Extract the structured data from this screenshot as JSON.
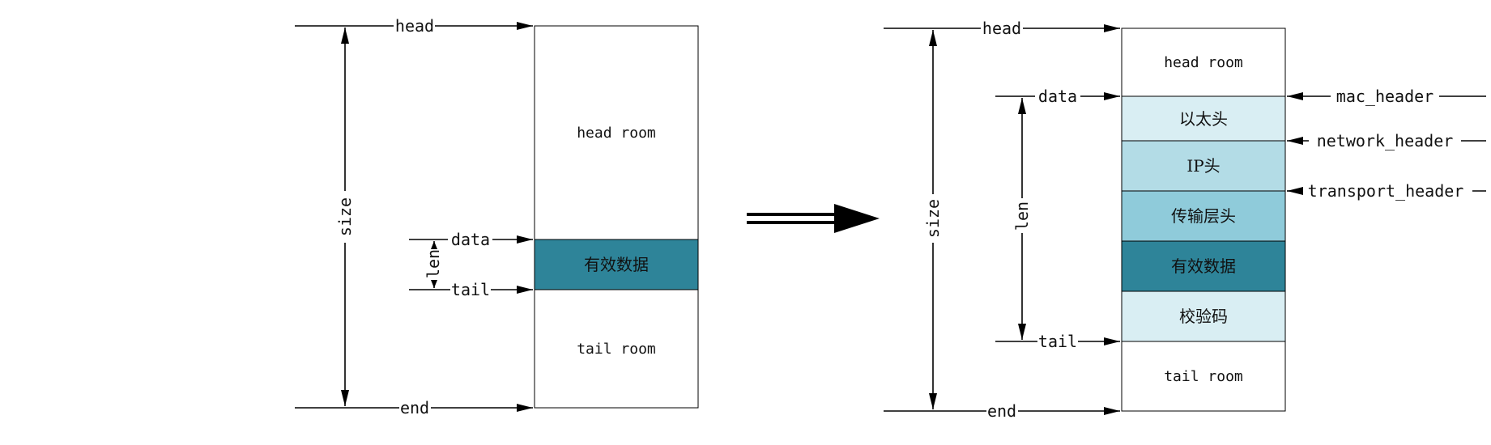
{
  "colors": {
    "white": "#ffffff",
    "light": "#d9eef3",
    "mid": "#b3dce6",
    "mid2": "#8fcbda",
    "dark": "#2e8499"
  },
  "left": {
    "head": "head",
    "data": "data",
    "len": "len",
    "tail": "tail",
    "end": "end",
    "size": "size",
    "head_room": "head room",
    "payload": "有效数据",
    "tail_room": "tail room"
  },
  "right": {
    "head": "head",
    "data": "data",
    "len": "len",
    "tail": "tail",
    "end": "end",
    "size": "size",
    "head_room": "head room",
    "eth_header": "以太头",
    "ip_header": "IP头",
    "transport_header": "传输层头",
    "payload": "有效数据",
    "checksum": "校验码",
    "tail_room": "tail room",
    "mac_header_ptr": "mac_header",
    "network_header_ptr": "network_header",
    "transport_header_ptr": "transport_header"
  }
}
